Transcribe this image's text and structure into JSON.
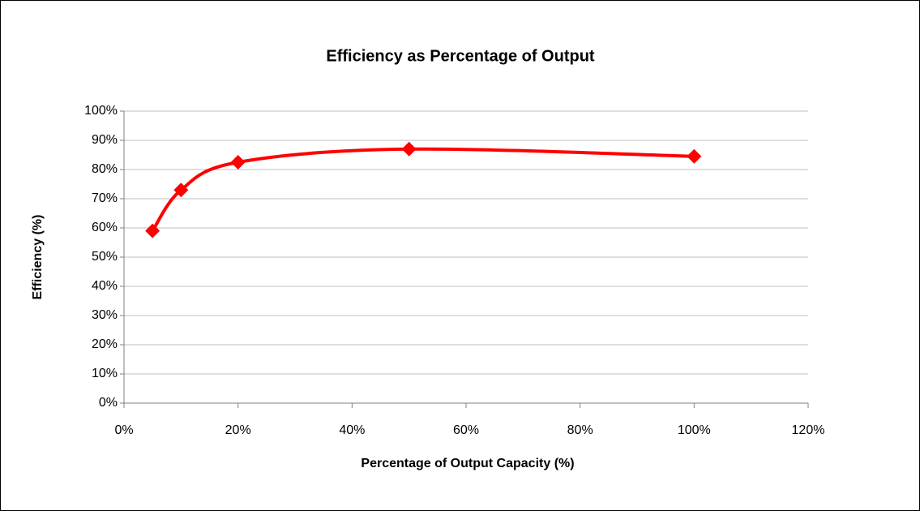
{
  "chart_data": {
    "type": "line",
    "title": "Efficiency as Percentage of Output",
    "x_label": "Percentage of Output Capacity (%)",
    "y_label": "Efficiency (%)",
    "x": [
      5,
      10,
      20,
      50,
      100
    ],
    "series": [
      {
        "name": "Efficiency",
        "color": "#ff0000",
        "values": [
          59,
          73,
          82.5,
          87,
          84.5
        ]
      }
    ],
    "xlim": [
      0,
      120
    ],
    "xticks": [
      {
        "value": 0,
        "label": "0%"
      },
      {
        "value": 20,
        "label": "20%"
      },
      {
        "value": 40,
        "label": "40%"
      },
      {
        "value": 60,
        "label": "60%"
      },
      {
        "value": 80,
        "label": "80%"
      },
      {
        "value": 100,
        "label": "100%"
      },
      {
        "value": 120,
        "label": "120%"
      }
    ],
    "ylim": [
      0,
      100
    ],
    "yticks": [
      {
        "value": 0,
        "label": "0%"
      },
      {
        "value": 10,
        "label": "10%"
      },
      {
        "value": 20,
        "label": "20%"
      },
      {
        "value": 30,
        "label": "30%"
      },
      {
        "value": 40,
        "label": "40%"
      },
      {
        "value": 50,
        "label": "50%"
      },
      {
        "value": 60,
        "label": "60%"
      },
      {
        "value": 70,
        "label": "70%"
      },
      {
        "value": 80,
        "label": "80%"
      },
      {
        "value": 90,
        "label": "90%"
      },
      {
        "value": 100,
        "label": "100%"
      }
    ],
    "grid": true,
    "smooth": true
  }
}
